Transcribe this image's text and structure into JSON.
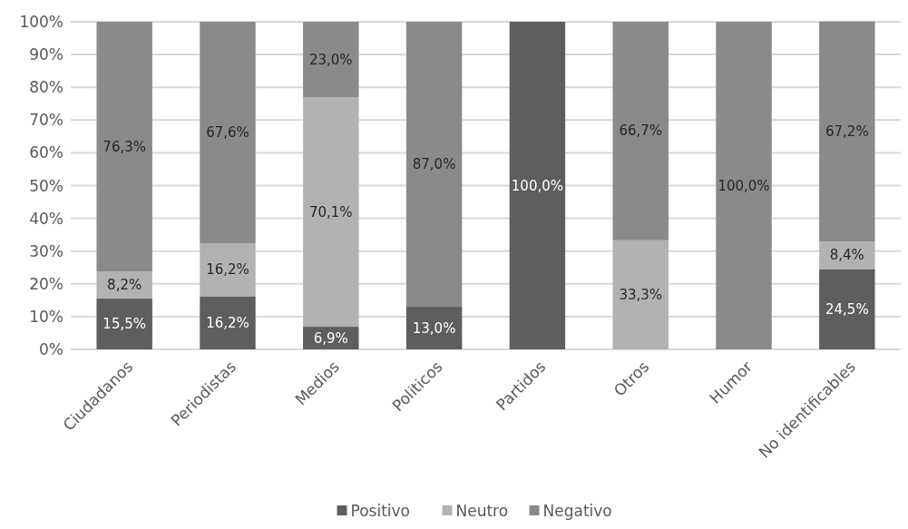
{
  "chart_data": {
    "type": "bar",
    "stacked": true,
    "categories": [
      "Ciudadanos",
      "Periodistas",
      "Medios",
      "Politicos",
      "Partidos",
      "Otros",
      "Humor",
      "No identificables"
    ],
    "series": [
      {
        "name": "Positivo",
        "color": "#5e5e5e",
        "values": [
          15.5,
          16.2,
          6.9,
          13.0,
          100.0,
          0,
          0,
          24.5
        ],
        "value_labels": [
          "15,5%",
          "16,2%",
          "6,9%",
          "13,0%",
          "100,0%",
          null,
          null,
          "24,5%"
        ]
      },
      {
        "name": "Neutro",
        "color": "#b2b2b2",
        "values": [
          8.2,
          16.2,
          70.1,
          0,
          0,
          33.3,
          0,
          8.4
        ],
        "value_labels": [
          "8,2%",
          "16,2%",
          "70,1%",
          null,
          null,
          "33,3%",
          null,
          "8,4%"
        ]
      },
      {
        "name": "Negativo",
        "color": "#8a8a8a",
        "values": [
          76.3,
          67.6,
          23.0,
          87.0,
          0,
          66.7,
          100.0,
          67.2
        ],
        "value_labels": [
          "76,3%",
          "67,6%",
          "23,0%",
          "87,0%",
          null,
          "66,7%",
          "100,0%",
          "67,2%"
        ]
      }
    ],
    "ylim": [
      0,
      100
    ],
    "yticks": [
      {
        "value": 0,
        "label": "0%"
      },
      {
        "value": 10,
        "label": "10%"
      },
      {
        "value": 20,
        "label": "20%"
      },
      {
        "value": 30,
        "label": "30%"
      },
      {
        "value": 40,
        "label": "40%"
      },
      {
        "value": 50,
        "label": "50%"
      },
      {
        "value": 60,
        "label": "60%"
      },
      {
        "value": 70,
        "label": "70%"
      },
      {
        "value": 80,
        "label": "80%"
      },
      {
        "value": 90,
        "label": "90%"
      },
      {
        "value": 100,
        "label": "100%"
      }
    ],
    "grid": "y",
    "legend": "bottom"
  }
}
